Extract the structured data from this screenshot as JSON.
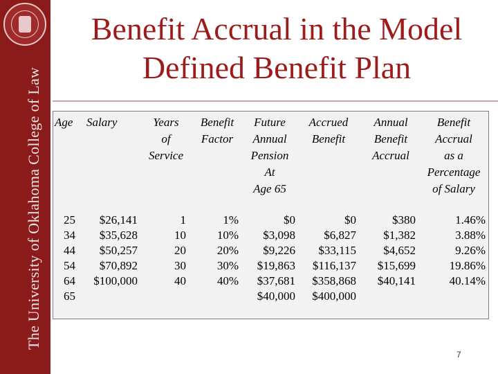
{
  "title": {
    "line1": "Benefit Accrual in the Model",
    "line2": "Defined Benefit Plan"
  },
  "banner": {
    "text": "The University of Oklahoma College of Law"
  },
  "table": {
    "headers": [
      "Age",
      "Salary",
      "Years of Service",
      "Benefit Factor",
      "Future Annual Pension At Age 65",
      "Accrued Benefit",
      "Annual Benefit Accrual",
      "Benefit Accrual as a Percentage of Salary"
    ],
    "header_lines": [
      [
        "Age"
      ],
      [
        "Salary"
      ],
      [
        "Years",
        "of",
        "Service"
      ],
      [
        "Benefit",
        "Factor"
      ],
      [
        "Future",
        "Annual",
        "Pension",
        "At",
        "Age 65"
      ],
      [
        "Accrued",
        "Benefit"
      ],
      [
        "Annual",
        "Benefit",
        "Accrual"
      ],
      [
        "Benefit",
        "Accrual",
        "as a",
        "Percentage",
        "of Salary"
      ]
    ],
    "rows": [
      [
        "25",
        "$26,141",
        "1",
        "1%",
        "$0",
        "$0",
        "$380",
        "1.46%"
      ],
      [
        "34",
        "$35,628",
        "10",
        "10%",
        "$3,098",
        "$6,827",
        "$1,382",
        "3.88%"
      ],
      [
        "44",
        "$50,257",
        "20",
        "20%",
        "$9,226",
        "$33,115",
        "$4,652",
        "9.26%"
      ],
      [
        "54",
        "$70,892",
        "30",
        "30%",
        "$19,863",
        "$116,137",
        "$15,699",
        "19.86%"
      ],
      [
        "64",
        "$100,000",
        "40",
        "40%",
        "$37,681",
        "$358,868",
        "$40,141",
        "40.14%"
      ],
      [
        "65",
        "",
        "",
        "",
        "$40,000",
        "$400,000",
        "",
        ""
      ]
    ]
  },
  "page_number": "7",
  "colors": {
    "title": "#9c1c1c",
    "banner": "#8b1a1a",
    "table_bg": "#f2f2f2"
  }
}
